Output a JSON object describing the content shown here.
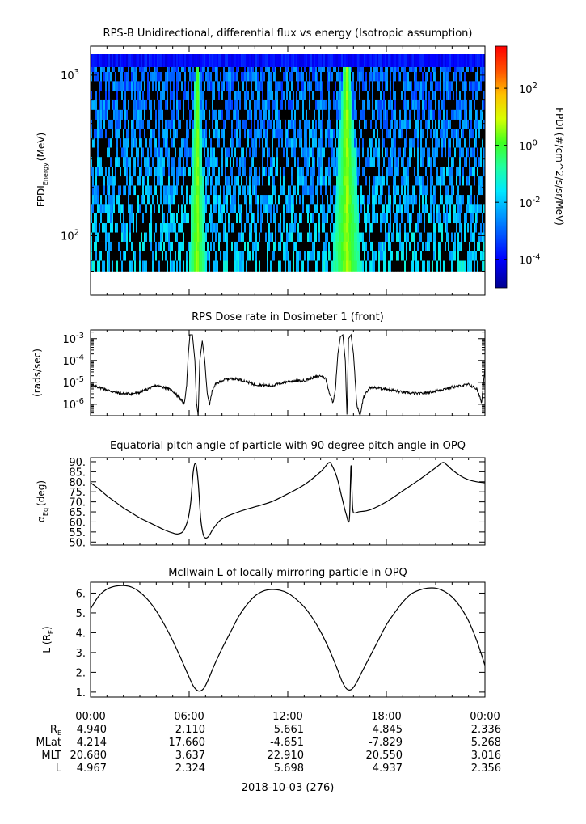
{
  "chart_data": [
    {
      "type": "heatmap",
      "title": "RPS-B  Unidirectional, differential flux vs energy (Isotropic assumption)",
      "ylabel_main": "FPDI",
      "ylabel_sub": "Energy",
      "ylabel_unit": "(MeV)",
      "yscale": "log",
      "ylim": [
        55,
        1350
      ],
      "yticks": [
        {
          "label": "10",
          "exp": "3",
          "value": 1000
        },
        {
          "label": "10",
          "exp": "2",
          "value": 100
        }
      ],
      "energy_bins": [
        60,
        70,
        80,
        92,
        105,
        120,
        138,
        158,
        180,
        206,
        235,
        270,
        310,
        355,
        405,
        465,
        530,
        610,
        700,
        800,
        920,
        1050,
        1200,
        1350
      ],
      "colorbar": {
        "label": "FPDI (#/cm^2/s/sr/MeV)",
        "scale": "log",
        "range": [
          1e-05,
          3000
        ],
        "ticks": [
          {
            "label": "10",
            "exp": "2",
            "value": 100
          },
          {
            "label": "10",
            "exp": "0",
            "value": 1
          },
          {
            "label": "10",
            "exp": "-2",
            "value": 0.01
          },
          {
            "label": "10",
            "exp": "-4",
            "value": 0.0001
          }
        ]
      },
      "features": [
        {
          "type": "high_flux_band",
          "center_hour": 6.5,
          "low_energy_halfwidth_hours": 0.5,
          "high_energy_halfwidth_hours": 0.1
        },
        {
          "type": "high_flux_band",
          "center_hour": 15.6,
          "low_energy_halfwidth_hours": 0.9,
          "high_energy_halfwidth_hours": 0.15
        }
      ]
    },
    {
      "type": "line",
      "title": "RPS  Dose rate in Dosimeter 1 (front)",
      "ylabel": "(rads/sec)",
      "yscale": "log",
      "ylim": [
        3e-07,
        0.0025
      ],
      "yticks": [
        {
          "label": "10",
          "exp": "-3",
          "value": 0.001
        },
        {
          "label": "10",
          "exp": "-4",
          "value": 0.0001
        },
        {
          "label": "10",
          "exp": "-5",
          "value": 1e-05
        },
        {
          "label": "10",
          "exp": "-6",
          "value": 1e-06
        }
      ],
      "x_hours": [
        0,
        0.5,
        1,
        1.5,
        2,
        2.5,
        3,
        3.5,
        4,
        4.5,
        5,
        5.4,
        5.7,
        5.85,
        5.95,
        6.05,
        6.2,
        6.35,
        6.45,
        6.55,
        6.65,
        6.8,
        6.95,
        7.1,
        7.25,
        7.4,
        7.6,
        8,
        8.5,
        9,
        10,
        11,
        12,
        13,
        13.5,
        14,
        14.3,
        14.55,
        14.75,
        14.9,
        15.05,
        15.2,
        15.35,
        15.5,
        15.6,
        15.7,
        15.85,
        16.0,
        16.2,
        16.4,
        16.6,
        17,
        18,
        19,
        20,
        21,
        22,
        23,
        23.5,
        23.8,
        24
      ],
      "y": [
        7e-06,
        6e-06,
        4.5e-06,
        3.5e-06,
        3e-06,
        3e-06,
        3.5e-06,
        5e-06,
        7e-06,
        6e-06,
        4e-06,
        2e-06,
        1e-06,
        8e-06,
        0.0002,
        0.0015,
        0.0015,
        0.0001,
        1e-06,
        3e-07,
        0.0001,
        0.0008,
        0.0001,
        3e-06,
        1e-06,
        4e-06,
        8e-06,
        1.2e-05,
        1.5e-05,
        1.4e-05,
        8e-06,
        7e-06,
        1.1e-05,
        1.2e-05,
        1.6e-05,
        2e-05,
        1.5e-05,
        3e-06,
        1.2e-06,
        5e-06,
        0.0002,
        0.0012,
        0.0015,
        0.0001,
        3e-07,
        0.001,
        0.0015,
        0.0002,
        1e-06,
        3e-07,
        2e-06,
        6e-06,
        5e-06,
        3.5e-06,
        3e-06,
        4e-06,
        6e-06,
        8e-06,
        5e-06,
        1.2e-06,
        5e-05
      ]
    },
    {
      "type": "line",
      "title": "Equatorial pitch angle of particle with 90 degree pitch angle in OPQ",
      "ylabel_main": "α",
      "ylabel_sub": "Eq",
      "ylabel_unit": "(deg)",
      "ylim": [
        48.5,
        92
      ],
      "yticks": [
        90,
        85,
        80,
        75,
        70,
        65,
        60,
        55,
        50
      ],
      "ytick_labels": [
        "90.",
        "85.",
        "80.",
        "75.",
        "70.",
        "65.",
        "60.",
        "55.",
        "50."
      ],
      "x_hours": [
        0,
        0.5,
        1,
        1.5,
        2,
        2.5,
        3,
        3.5,
        4,
        4.5,
        5,
        5.3,
        5.6,
        5.8,
        5.95,
        6.1,
        6.25,
        6.4,
        6.55,
        6.7,
        6.85,
        7.0,
        7.2,
        7.5,
        8,
        9,
        10,
        11,
        12,
        13,
        14,
        14.5,
        14.7,
        15,
        15.3,
        15.55,
        15.75,
        15.85,
        15.95,
        16.1,
        16.3,
        17,
        18,
        19,
        20,
        21,
        21.4,
        21.6,
        22,
        22.5,
        23,
        23.5,
        24
      ],
      "y": [
        79.5,
        76.5,
        73,
        70,
        67,
        64.5,
        62,
        60,
        58,
        56,
        54.5,
        54,
        55,
        58,
        62,
        70,
        85,
        89,
        80,
        62,
        54,
        52,
        53,
        57,
        61.5,
        65,
        67.5,
        70,
        74,
        78.5,
        85,
        89.5,
        88,
        82,
        72,
        64,
        61.5,
        88,
        67,
        64.5,
        65,
        66,
        70,
        75.5,
        81,
        87,
        89.5,
        89,
        86,
        83,
        81,
        80,
        79.5
      ]
    },
    {
      "type": "line",
      "title": "McIlwain L of locally mirroring particle in OPQ",
      "ylabel_main": "L (R",
      "ylabel_sub": "E",
      "ylabel_unit": ")",
      "ylim": [
        0.75,
        6.55
      ],
      "yticks": [
        6,
        5,
        4,
        3,
        2,
        1
      ],
      "ytick_labels": [
        "6.",
        "5.",
        "4.",
        "3.",
        "2.",
        "1."
      ],
      "x_hours": [
        0,
        0.5,
        1,
        1.5,
        2,
        2.5,
        3,
        3.5,
        4,
        4.5,
        5,
        5.5,
        6,
        6.3,
        6.6,
        6.9,
        7.2,
        7.5,
        8,
        8.5,
        9,
        9.5,
        10,
        10.5,
        11,
        11.5,
        12,
        12.5,
        13,
        13.5,
        14,
        14.5,
        15,
        15.3,
        15.6,
        15.9,
        16.2,
        16.5,
        17,
        17.5,
        18,
        18.5,
        19,
        19.5,
        20,
        20.5,
        21,
        21.5,
        22,
        22.5,
        23,
        23.5,
        24
      ],
      "y": [
        5.2,
        5.85,
        6.2,
        6.35,
        6.38,
        6.3,
        6.05,
        5.65,
        5.1,
        4.4,
        3.6,
        2.7,
        1.75,
        1.25,
        1.05,
        1.2,
        1.7,
        2.3,
        3.2,
        4.0,
        4.8,
        5.4,
        5.85,
        6.1,
        6.18,
        6.15,
        6.0,
        5.7,
        5.3,
        4.75,
        4.05,
        3.2,
        2.2,
        1.55,
        1.15,
        1.15,
        1.5,
        2.0,
        2.8,
        3.6,
        4.4,
        5.0,
        5.55,
        5.95,
        6.15,
        6.25,
        6.25,
        6.1,
        5.8,
        5.3,
        4.6,
        3.6,
        2.35
      ]
    }
  ],
  "x_axis": {
    "tick_labels": [
      "00:00",
      "06:00",
      "12:00",
      "18:00",
      "00:00"
    ],
    "tick_hours": [
      0,
      6,
      12,
      18,
      24
    ],
    "date_label": "2018-10-03 (276)"
  },
  "ephemeris": {
    "rows": [
      {
        "label": "R",
        "sub": "E",
        "values": [
          "4.940",
          "2.110",
          "5.661",
          "4.845",
          "2.336"
        ]
      },
      {
        "label": "MLat",
        "sub": "",
        "values": [
          "4.214",
          "17.660",
          "-4.651",
          "-7.829",
          "5.268"
        ]
      },
      {
        "label": "MLT",
        "sub": "",
        "values": [
          "20.680",
          "3.637",
          "22.910",
          "20.550",
          "3.016"
        ]
      },
      {
        "label": "L",
        "sub": "",
        "values": [
          "4.967",
          "2.324",
          "5.698",
          "4.937",
          "2.356"
        ]
      }
    ]
  }
}
